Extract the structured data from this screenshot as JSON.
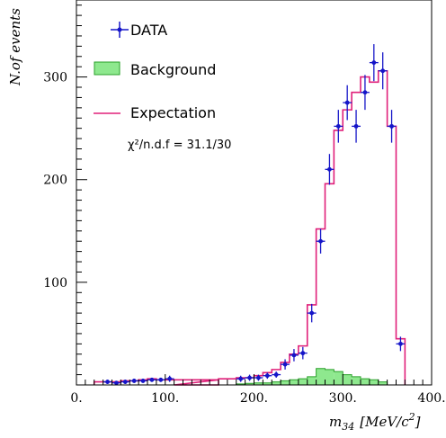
{
  "chart_data": {
    "type": "histogram",
    "xlabel": "m",
    "xlabel_sub": "34",
    "xlabel_unit": "[MeV/c",
    "xlabel_unit_sup": "2",
    "xlabel_unit_close": "]",
    "ylabel": "N.of events",
    "xlim": [
      0,
      400
    ],
    "ylim": [
      0,
      375
    ],
    "x_ticks": [
      0,
      100,
      200,
      300,
      400
    ],
    "x_tick_labels": [
      "0.",
      "100.",
      "200.",
      "300.",
      "400."
    ],
    "y_ticks": [
      100,
      200,
      300
    ],
    "y_tick_labels": [
      "100",
      "200",
      "300"
    ],
    "bin_width": 10,
    "legend": {
      "data_label": "DATA",
      "background_label": "Background",
      "expectation_label": "Expectation",
      "chi2_label": "χ²/n.d.f = 31.1/30"
    },
    "colors": {
      "data": "#1515c8",
      "background_fill": "#8ee88e",
      "background_edge": "#2aa02a",
      "expectation": "#e0207a"
    },
    "expectation": {
      "edges": [
        20,
        30,
        40,
        50,
        60,
        70,
        80,
        90,
        100,
        110,
        160,
        170,
        180,
        190,
        200,
        210,
        220,
        230,
        240,
        250,
        260,
        270,
        280,
        290,
        300,
        310,
        320,
        330,
        340,
        350,
        360,
        370
      ],
      "values": [
        3,
        3,
        3,
        4,
        4,
        5,
        6,
        5,
        5,
        5,
        6,
        6,
        7,
        7,
        9,
        12,
        15,
        22,
        30,
        38,
        78,
        152,
        196,
        248,
        268,
        285,
        300,
        295,
        306,
        252,
        45
      ]
    },
    "background": {
      "edges": [
        180,
        190,
        200,
        210,
        220,
        230,
        240,
        250,
        260,
        270,
        280,
        290,
        300,
        310,
        320,
        330,
        340,
        350
      ],
      "values": [
        1,
        1.5,
        2,
        2,
        3,
        4,
        5,
        6,
        8,
        16,
        15,
        13,
        10,
        8,
        6,
        5,
        3
      ]
    },
    "data": {
      "x": [
        35,
        45,
        55,
        65,
        75,
        85,
        95,
        105,
        185,
        195,
        205,
        215,
        225,
        235,
        245,
        255,
        265,
        275,
        285,
        295,
        305,
        315,
        325,
        335,
        345,
        355,
        365
      ],
      "y": [
        3,
        2,
        3,
        4,
        4,
        5,
        5,
        6,
        6,
        7,
        7,
        9,
        10,
        20,
        29,
        31,
        70,
        140,
        210,
        252,
        275,
        252,
        285,
        314,
        306,
        252,
        40
      ],
      "err": [
        2,
        2,
        2,
        2,
        2,
        2,
        2,
        3,
        3,
        3,
        3,
        3,
        3,
        5,
        6,
        6,
        9,
        12,
        15,
        16,
        17,
        16,
        17,
        18,
        18,
        16,
        7
      ]
    }
  }
}
